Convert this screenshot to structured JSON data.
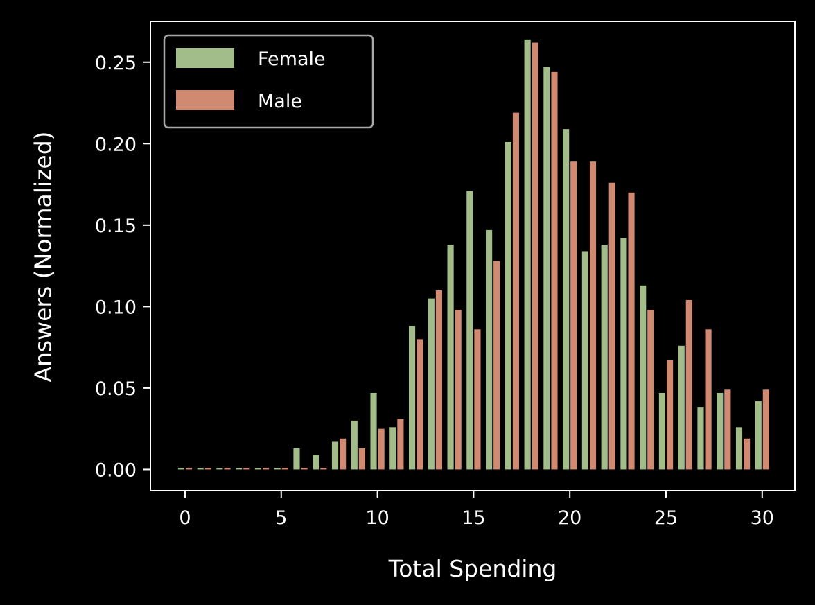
{
  "chart_data": {
    "type": "bar",
    "xlabel": "Total Spending",
    "ylabel": "Answers (Normalized)",
    "x": [
      0,
      1,
      2,
      3,
      4,
      5,
      6,
      7,
      8,
      9,
      10,
      11,
      12,
      13,
      14,
      15,
      16,
      17,
      18,
      19,
      20,
      21,
      22,
      23,
      24,
      25,
      26,
      27,
      28,
      29,
      30
    ],
    "xlim": [
      -1.8,
      31.7
    ],
    "ylim": [
      -0.013,
      0.275
    ],
    "xticks": [
      0,
      5,
      10,
      15,
      20,
      25,
      30
    ],
    "xtick_labels": [
      "0",
      "5",
      "10",
      "15",
      "20",
      "25",
      "30"
    ],
    "yticks": [
      0,
      0.05,
      0.1,
      0.15,
      0.2,
      0.25
    ],
    "ytick_labels": [
      "0.00",
      "0.05",
      "0.10",
      "0.15",
      "0.20",
      "0.25"
    ],
    "grid": false,
    "legend_position": "top-left",
    "series": [
      {
        "name": "Female",
        "color": "#a2bc8a",
        "values": [
          0.001,
          0.001,
          0.001,
          0.001,
          0.001,
          0.001,
          0.013,
          0.009,
          0.017,
          0.03,
          0.047,
          0.026,
          0.088,
          0.105,
          0.138,
          0.171,
          0.147,
          0.201,
          0.264,
          0.247,
          0.209,
          0.134,
          0.138,
          0.142,
          0.113,
          0.047,
          0.076,
          0.038,
          0.047,
          0.026,
          0.042
        ]
      },
      {
        "name": "Male",
        "color": "#d08a72",
        "values": [
          0.001,
          0.001,
          0.001,
          0.001,
          0.001,
          0.001,
          0.001,
          0.001,
          0.019,
          0.013,
          0.025,
          0.031,
          0.08,
          0.11,
          0.098,
          0.086,
          0.128,
          0.219,
          0.262,
          0.244,
          0.189,
          0.189,
          0.176,
          0.17,
          0.098,
          0.067,
          0.104,
          0.086,
          0.049,
          0.019,
          0.049
        ]
      }
    ]
  }
}
